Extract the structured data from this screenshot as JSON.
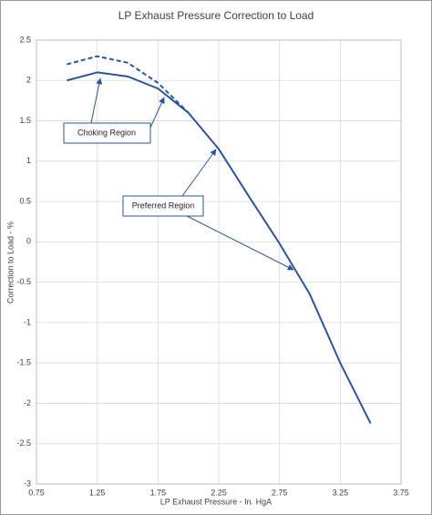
{
  "chart_data": {
    "type": "line",
    "title": "LP Exhaust Pressure Correction to Load",
    "x_label": "LP Exhaust Pressure -  In. HgA",
    "y_label": "Correction to Load - %",
    "series": [
      {
        "color": "#2e5597",
        "dash": false,
        "x": [
          1.0,
          1.25,
          1.5,
          1.75,
          2.0,
          2.25,
          2.5,
          2.75,
          3.0,
          3.25,
          3.5
        ],
        "values": [
          2.0,
          2.1,
          2.05,
          1.9,
          1.6,
          1.15,
          0.56,
          -0.02,
          -0.65,
          -1.5,
          -2.25
        ]
      },
      {
        "color": "#2e5597",
        "dash": true,
        "x": [
          1.0,
          1.25,
          1.5,
          1.75,
          2.0
        ],
        "values": [
          2.2,
          2.3,
          2.22,
          1.97,
          1.6
        ]
      }
    ],
    "annotations": [
      {
        "text": "Choking Region"
      },
      {
        "text": "Preferred Region"
      }
    ],
    "xlim": [
      0.75,
      3.75
    ],
    "xticks": [
      0.75,
      1.25,
      1.75,
      2.25,
      2.75,
      3.25,
      3.75
    ],
    "ylim": [
      -3,
      2.5
    ],
    "yticks": [
      2.5,
      2,
      1.5,
      1,
      0.5,
      0,
      -0.5,
      -1,
      -1.5,
      -2,
      -2.5,
      -3
    ],
    "grid": true
  }
}
